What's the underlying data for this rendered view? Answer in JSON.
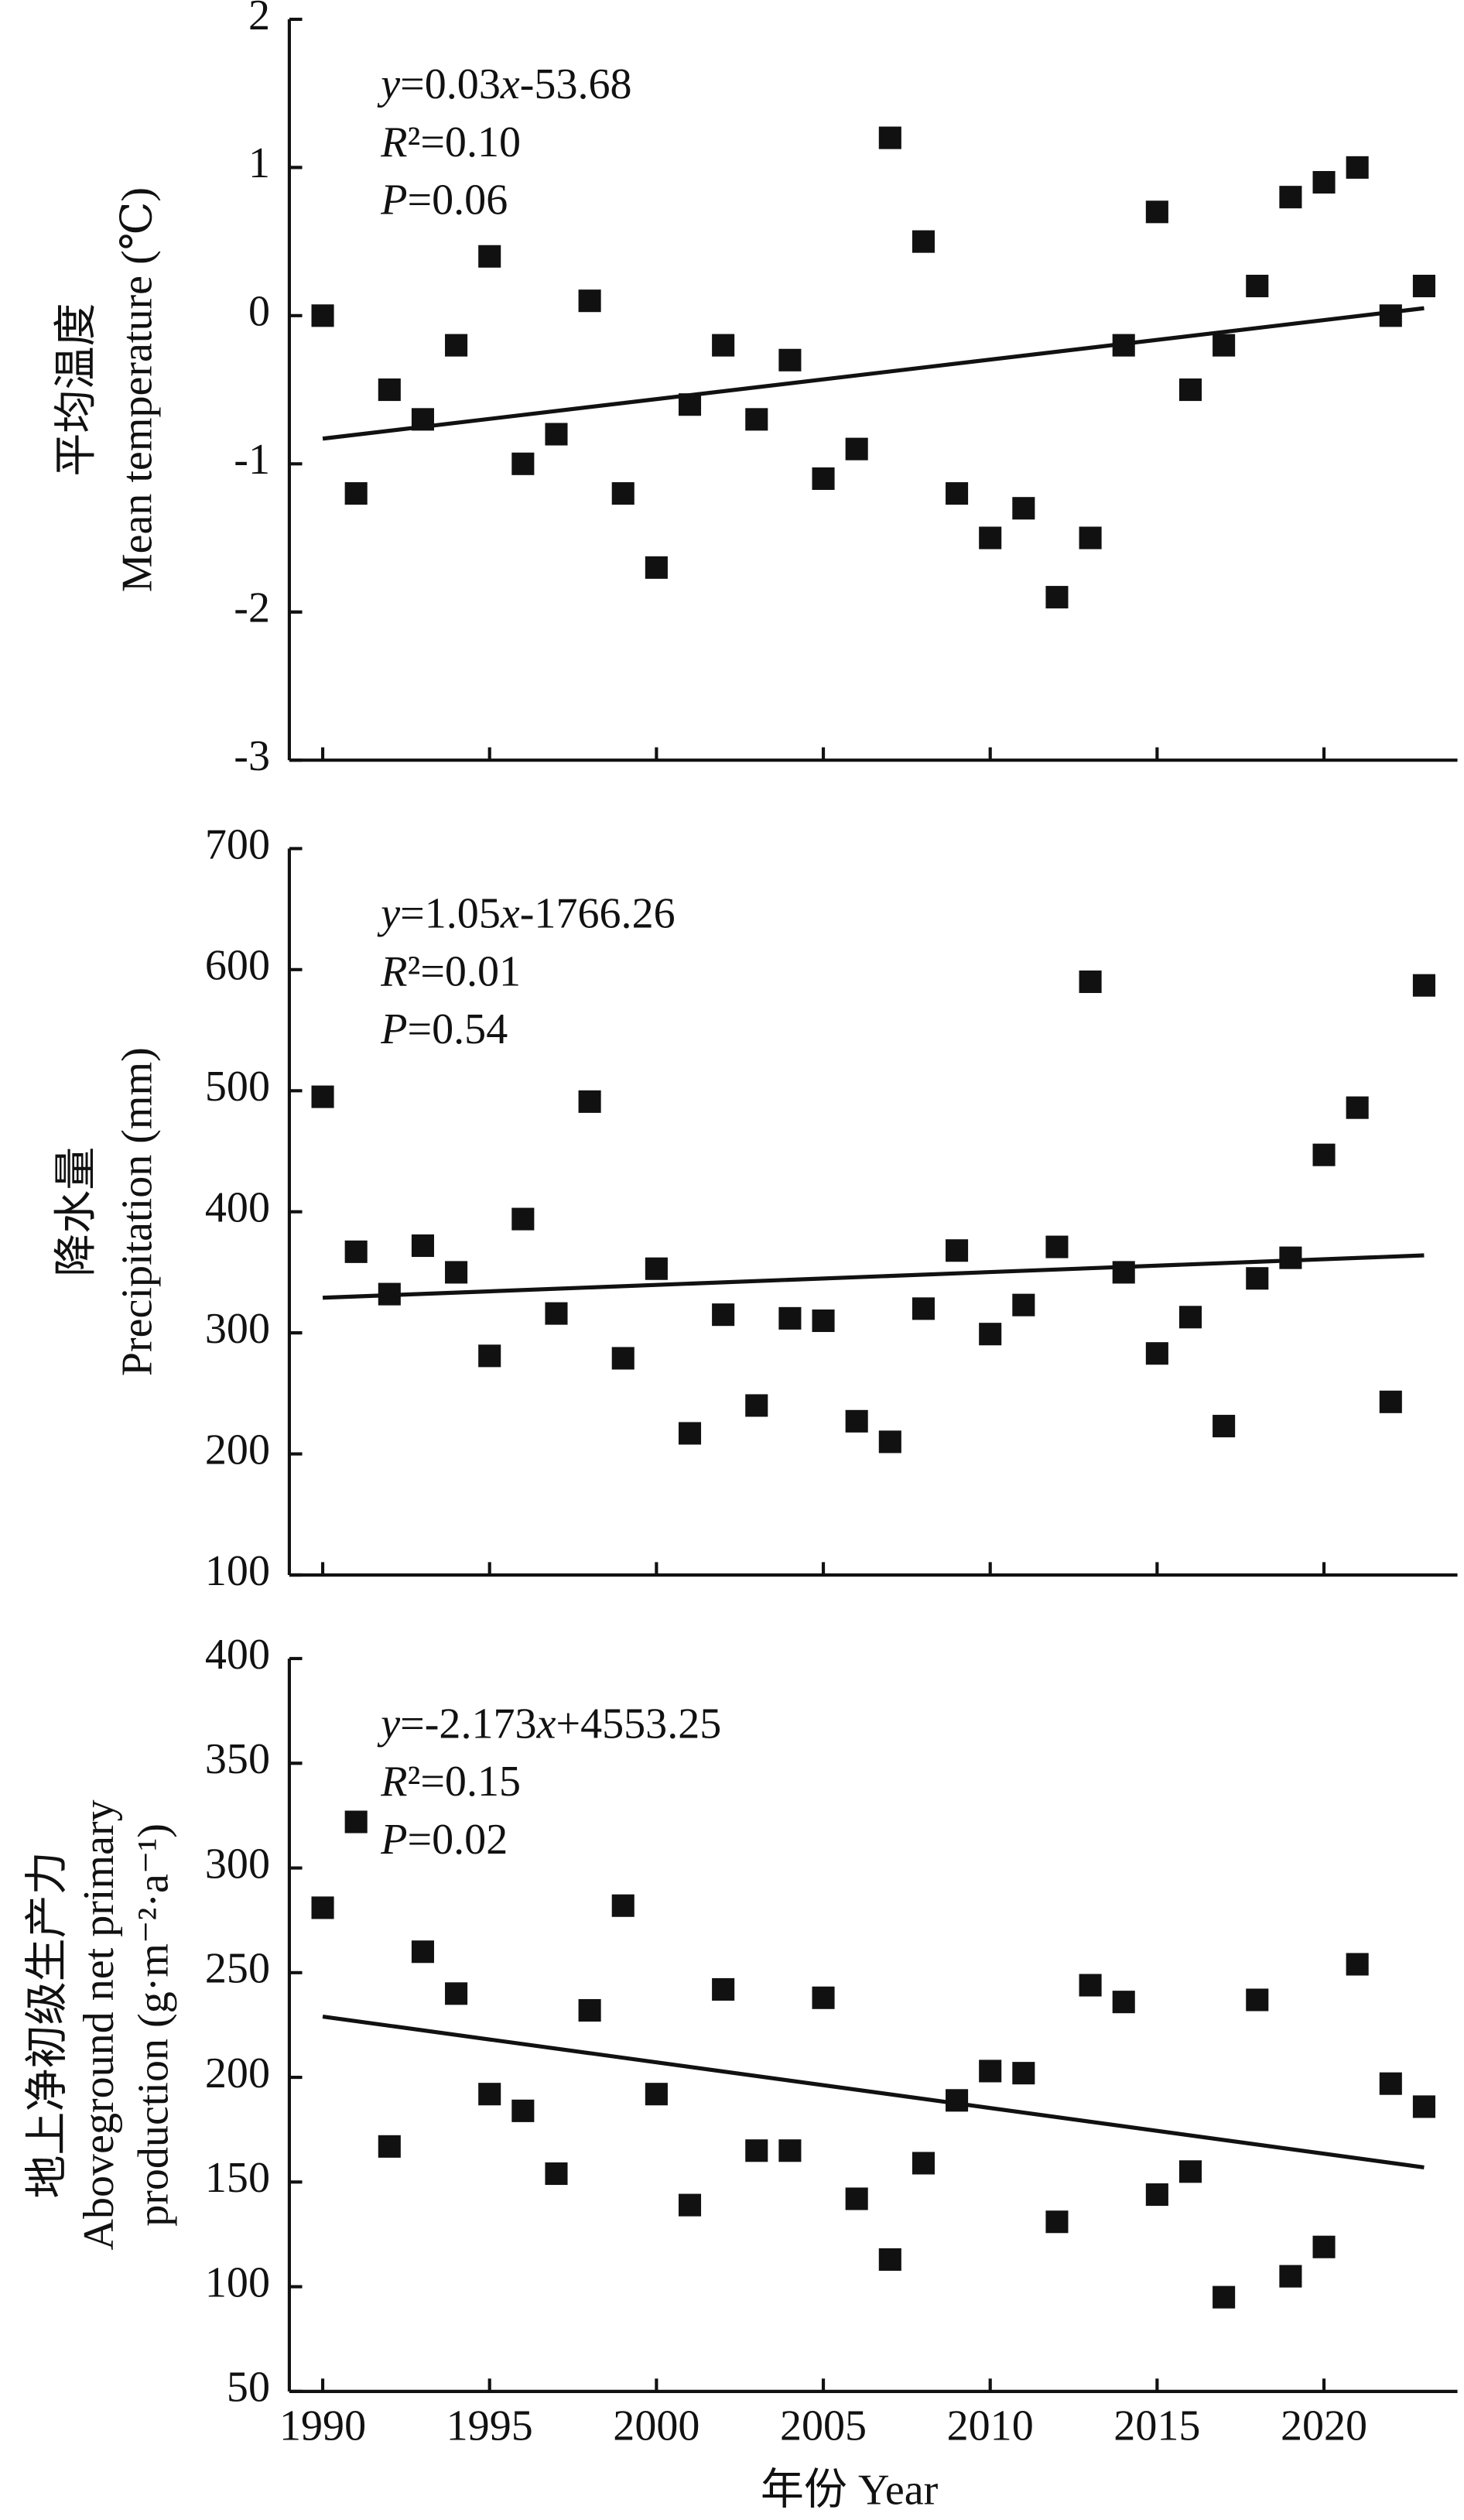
{
  "chart_data": [
    {
      "type": "scatter",
      "ylabel": [
        "平均温度",
        "Mean temperature (℃)"
      ],
      "annotations": [
        "y=0.03x-53.68",
        "R²=0.10",
        "P=0.06"
      ],
      "x": [
        1990,
        1991,
        1992,
        1993,
        1994,
        1995,
        1996,
        1997,
        1998,
        1999,
        2000,
        2001,
        2002,
        2003,
        2004,
        2005,
        2006,
        2007,
        2008,
        2009,
        2010,
        2011,
        2012,
        2013,
        2014,
        2015,
        2016,
        2017,
        2018,
        2019,
        2020,
        2021,
        2022,
        2023
      ],
      "values": [
        0,
        -1.2,
        -0.5,
        -0.7,
        -0.2,
        0.4,
        -1.0,
        -0.8,
        0.1,
        -1.2,
        -1.7,
        -0.6,
        -0.2,
        -0.7,
        -0.3,
        -1.1,
        -0.9,
        1.2,
        0.5,
        -1.2,
        -1.5,
        -1.3,
        -1.9,
        -1.5,
        -0.2,
        0.7,
        -0.5,
        -0.2,
        0.2,
        0.8,
        0.9,
        1.0,
        0,
        0.2
      ],
      "trend": {
        "x": [
          1990,
          2023
        ],
        "values": [
          -0.83,
          0.05
        ]
      },
      "color": "#111111",
      "xlim": [
        1989,
        2024
      ],
      "xticks": [
        1990,
        1995,
        2000,
        2005,
        2010,
        2015,
        2020
      ],
      "ylim": [
        -3,
        2
      ],
      "yticks": [
        -3,
        -2,
        -1,
        0,
        1,
        2
      ]
    },
    {
      "type": "scatter",
      "ylabel": [
        "降水量",
        "Precipitation (mm)"
      ],
      "annotations": [
        "y=1.05x-1766.26",
        "R²=0.01",
        "P=0.54"
      ],
      "x": [
        1990,
        1991,
        1992,
        1993,
        1994,
        1995,
        1996,
        1997,
        1998,
        1999,
        2000,
        2001,
        2002,
        2003,
        2004,
        2005,
        2006,
        2007,
        2008,
        2009,
        2010,
        2011,
        2012,
        2013,
        2014,
        2015,
        2016,
        2017,
        2018,
        2019,
        2020,
        2021,
        2022,
        2023
      ],
      "values": [
        495,
        367,
        332,
        372,
        350,
        281,
        394,
        316,
        491,
        279,
        353,
        217,
        315,
        240,
        312,
        310,
        227,
        210,
        320,
        368,
        299,
        323,
        371,
        590,
        350,
        283,
        313,
        223,
        345,
        362,
        447,
        486,
        243,
        587
      ],
      "trend": {
        "x": [
          1990,
          2023
        ],
        "values": [
          329,
          364
        ]
      },
      "color": "#111111",
      "xlim": [
        1989,
        2024
      ],
      "xticks": [
        1990,
        1995,
        2000,
        2005,
        2010,
        2015,
        2020
      ],
      "ylim": [
        100,
        700
      ],
      "yticks": [
        100,
        200,
        300,
        400,
        500,
        600,
        700
      ]
    },
    {
      "type": "scatter",
      "ylabel": [
        "地上净初级生产力",
        "Aboveground net primary",
        "production (g·m⁻²·a⁻¹)"
      ],
      "annotations": [
        "y=-2.173x+4553.25",
        "R²=0.15",
        "P=0.02"
      ],
      "xlabel": "年份 Year",
      "x": [
        1990,
        1991,
        1992,
        1993,
        1994,
        1995,
        1996,
        1997,
        1998,
        1999,
        2000,
        2001,
        2002,
        2003,
        2004,
        2005,
        2006,
        2007,
        2008,
        2009,
        2010,
        2011,
        2012,
        2013,
        2014,
        2015,
        2016,
        2017,
        2018,
        2019,
        2020,
        2021,
        2022,
        2023
      ],
      "values": [
        281,
        322,
        167,
        260,
        240,
        192,
        184,
        154,
        232,
        282,
        192,
        139,
        242,
        165,
        165,
        238,
        142,
        113,
        159,
        189,
        203,
        202,
        131,
        244,
        236,
        144,
        155,
        95,
        237,
        105,
        119,
        254,
        197,
        186
      ],
      "trend": {
        "x": [
          1990,
          2023
        ],
        "values": [
          229,
          157
        ]
      },
      "color": "#111111",
      "xlim": [
        1989,
        2024
      ],
      "xticks": [
        1990,
        1995,
        2000,
        2005,
        2010,
        2015,
        2020
      ],
      "ylim": [
        50,
        400
      ],
      "yticks": [
        50,
        100,
        150,
        200,
        250,
        300,
        350,
        400
      ]
    }
  ]
}
